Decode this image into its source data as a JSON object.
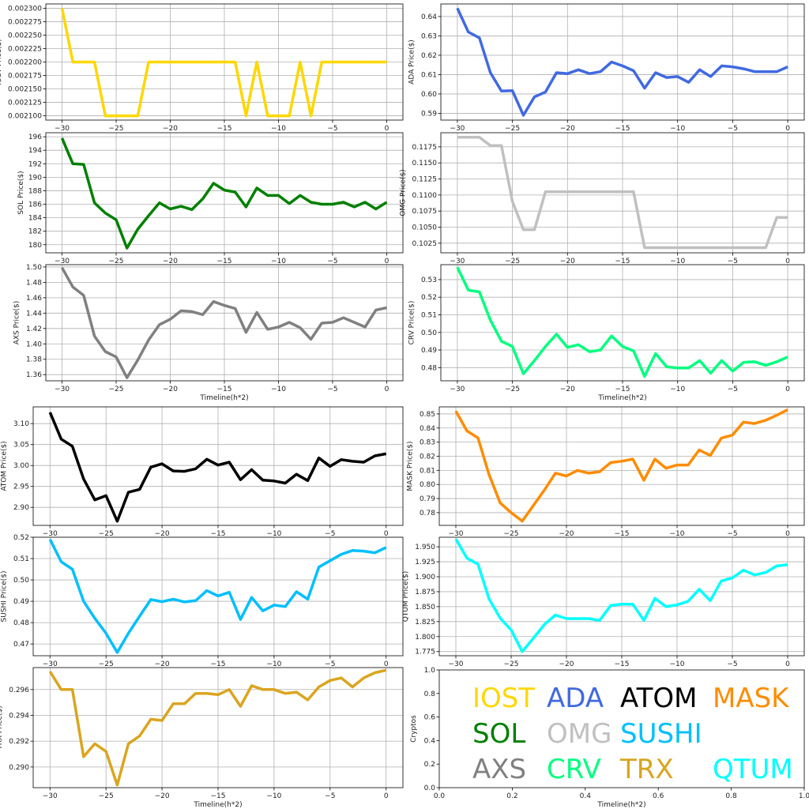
{
  "chart_data": [
    {
      "type": "line",
      "key": "iost",
      "ylabel": "IOST Price($)",
      "xlabel": "",
      "color": "#FFD700",
      "ylim": [
        0.002092,
        0.002308
      ],
      "yticks": [
        0.0021,
        0.002125,
        0.00215,
        0.002175,
        0.0022,
        0.002225,
        0.00225,
        0.002275,
        0.0023
      ],
      "ytick_decimals": 6,
      "x": [
        -30,
        -29,
        -28,
        -27,
        -26,
        -25,
        -24,
        -23,
        -22,
        -21,
        -20,
        -19,
        -18,
        -17,
        -16,
        -15,
        -14,
        -13,
        -12,
        -11,
        -10,
        -9,
        -8,
        -7,
        -6,
        -5,
        -4,
        -3,
        -2,
        -1,
        0
      ],
      "values": [
        0.0023,
        0.0022,
        0.0022,
        0.0022,
        0.0021,
        0.0021,
        0.0021,
        0.0021,
        0.0022,
        0.0022,
        0.0022,
        0.0022,
        0.0022,
        0.0022,
        0.0022,
        0.0022,
        0.0022,
        0.0021,
        0.0022,
        0.0021,
        0.0021,
        0.0021,
        0.0022,
        0.0021,
        0.0022,
        0.0022,
        0.0022,
        0.0022,
        0.0022,
        0.0022,
        0.0022
      ]
    },
    {
      "type": "line",
      "key": "ada",
      "ylabel": "ADA  Price($)",
      "xlabel": "",
      "color": "#4169E1",
      "ylim": [
        0.5865,
        0.6465
      ],
      "yticks": [
        0.59,
        0.6,
        0.61,
        0.62,
        0.63,
        0.64
      ],
      "ytick_decimals": 2,
      "x": [
        -30,
        -29,
        -28,
        -27,
        -26,
        -25,
        -24,
        -23,
        -22,
        -21,
        -20,
        -19,
        -18,
        -17,
        -16,
        -15,
        -14,
        -13,
        -12,
        -11,
        -10,
        -9,
        -8,
        -7,
        -6,
        -5,
        -4,
        -3,
        -2,
        -1,
        0
      ],
      "values": [
        0.6443,
        0.632,
        0.629,
        0.611,
        0.6015,
        0.6017,
        0.589,
        0.5985,
        0.601,
        0.611,
        0.6105,
        0.6125,
        0.6105,
        0.6115,
        0.6165,
        0.6145,
        0.612,
        0.603,
        0.611,
        0.6085,
        0.609,
        0.606,
        0.6125,
        0.609,
        0.6145,
        0.614,
        0.613,
        0.6115,
        0.6115,
        0.6115,
        0.614
      ]
    },
    {
      "type": "line",
      "key": "sol",
      "ylabel": "SOL Price($)",
      "xlabel": "",
      "color": "#008000",
      "ylim": [
        178.8,
        196.6
      ],
      "yticks": [
        180,
        182,
        184,
        186,
        188,
        190,
        192,
        194,
        196
      ],
      "ytick_decimals": 0,
      "x": [
        -30,
        -29,
        -28,
        -27,
        -26,
        -25,
        -24,
        -23,
        -22,
        -21,
        -20,
        -19,
        -18,
        -17,
        -16,
        -15,
        -14,
        -13,
        -12,
        -11,
        -10,
        -9,
        -8,
        -7,
        -6,
        -5,
        -4,
        -3,
        -2,
        -1,
        0
      ],
      "values": [
        195.8,
        192.0,
        191.9,
        186.2,
        184.7,
        183.7,
        179.5,
        182.3,
        184.3,
        186.2,
        185.3,
        185.7,
        185.2,
        186.8,
        189.1,
        188.1,
        187.8,
        185.6,
        188.4,
        187.3,
        187.3,
        186.1,
        187.3,
        186.3,
        186.0,
        186.0,
        186.3,
        185.6,
        186.3,
        185.3,
        186.3
      ]
    },
    {
      "type": "line",
      "key": "omg",
      "ylabel": "OMG  Price($)",
      "xlabel": "",
      "color": "#C0C0C0",
      "ylim": [
        0.101,
        0.1197
      ],
      "yticks": [
        0.1025,
        0.105,
        0.1075,
        0.11,
        0.1125,
        0.115,
        0.1175
      ],
      "ytick_decimals": 4,
      "x": [
        -30,
        -29,
        -28,
        -27,
        -26,
        -25,
        -24,
        -23,
        -22,
        -21,
        -20,
        -19,
        -18,
        -17,
        -16,
        -15,
        -14,
        -13,
        -12,
        -11,
        -10,
        -9,
        -8,
        -7,
        -6,
        -5,
        -4,
        -3,
        -2,
        -1,
        0
      ],
      "values": [
        0.119,
        0.119,
        0.119,
        0.1177,
        0.1177,
        0.109,
        0.1046,
        0.1046,
        0.1105,
        0.1105,
        0.1105,
        0.1105,
        0.1105,
        0.1105,
        0.1105,
        0.1105,
        0.1105,
        0.1018,
        0.1018,
        0.1018,
        0.1018,
        0.1018,
        0.1018,
        0.1018,
        0.1018,
        0.1018,
        0.1018,
        0.1018,
        0.1018,
        0.1065,
        0.1065
      ]
    },
    {
      "type": "line",
      "key": "axs",
      "ylabel": "AXS Price($)",
      "xlabel": "Timeline(h*2)",
      "color": "#808080",
      "ylim": [
        1.352,
        1.503
      ],
      "yticks": [
        1.36,
        1.38,
        1.4,
        1.42,
        1.44,
        1.46,
        1.48,
        1.5
      ],
      "ytick_decimals": 2,
      "x": [
        -30,
        -29,
        -28,
        -27,
        -26,
        -25,
        -24,
        -23,
        -22,
        -21,
        -20,
        -19,
        -18,
        -17,
        -16,
        -15,
        -14,
        -13,
        -12,
        -11,
        -10,
        -9,
        -8,
        -7,
        -6,
        -5,
        -4,
        -3,
        -2,
        -1,
        0
      ],
      "values": [
        1.499,
        1.474,
        1.463,
        1.41,
        1.39,
        1.383,
        1.356,
        1.379,
        1.405,
        1.425,
        1.432,
        1.443,
        1.442,
        1.438,
        1.455,
        1.45,
        1.446,
        1.415,
        1.441,
        1.419,
        1.422,
        1.428,
        1.421,
        1.406,
        1.427,
        1.428,
        1.434,
        1.428,
        1.422,
        1.444,
        1.447
      ]
    },
    {
      "type": "line",
      "key": "crv",
      "ylabel": "CRV  Price($)",
      "xlabel": "Timeline(h*2)",
      "color": "#00FF7F",
      "ylim": [
        0.4725,
        0.5385
      ],
      "yticks": [
        0.48,
        0.49,
        0.5,
        0.51,
        0.52,
        0.53
      ],
      "ytick_decimals": 2,
      "x": [
        -30,
        -29,
        -28,
        -27,
        -26,
        -25,
        -24,
        -23,
        -22,
        -21,
        -20,
        -19,
        -18,
        -17,
        -16,
        -15,
        -14,
        -13,
        -12,
        -11,
        -10,
        -9,
        -8,
        -7,
        -6,
        -5,
        -4,
        -3,
        -2,
        -1,
        0
      ],
      "values": [
        0.537,
        0.524,
        0.523,
        0.507,
        0.495,
        0.492,
        0.4765,
        0.484,
        0.492,
        0.499,
        0.4915,
        0.493,
        0.489,
        0.49,
        0.498,
        0.492,
        0.4895,
        0.475,
        0.488,
        0.4805,
        0.4798,
        0.4798,
        0.484,
        0.4768,
        0.484,
        0.478,
        0.483,
        0.4833,
        0.4813,
        0.4833,
        0.486
      ]
    },
    {
      "type": "line",
      "key": "atom",
      "ylabel": "ATOM  Price($)",
      "xlabel": "",
      "color": "#000000",
      "ylim": [
        2.857,
        3.14
      ],
      "yticks": [
        2.9,
        2.95,
        3.0,
        3.05,
        3.1
      ],
      "ytick_decimals": 2,
      "x": [
        -30,
        -29,
        -28,
        -27,
        -26,
        -25,
        -24,
        -23,
        -22,
        -21,
        -20,
        -19,
        -18,
        -17,
        -16,
        -15,
        -14,
        -13,
        -12,
        -11,
        -10,
        -9,
        -8,
        -7,
        -6,
        -5,
        -4,
        -3,
        -2,
        -1,
        0
      ],
      "values": [
        3.127,
        3.063,
        3.046,
        2.968,
        2.918,
        2.928,
        2.867,
        2.936,
        2.943,
        2.996,
        3.004,
        2.987,
        2.986,
        2.992,
        3.015,
        3.001,
        3.008,
        2.966,
        2.99,
        2.965,
        2.963,
        2.958,
        2.979,
        2.964,
        3.018,
        2.998,
        3.014,
        3.01,
        3.008,
        3.023,
        3.028
      ]
    },
    {
      "type": "line",
      "key": "mask",
      "ylabel": "MASK  Price($)",
      "xlabel": "",
      "color": "#FF8C00",
      "ylim": [
        0.771,
        0.855
      ],
      "yticks": [
        0.78,
        0.79,
        0.8,
        0.81,
        0.82,
        0.83,
        0.84,
        0.85
      ],
      "ytick_decimals": 2,
      "x": [
        -30,
        -29,
        -28,
        -27,
        -26,
        -25,
        -24,
        -23,
        -22,
        -21,
        -20,
        -19,
        -18,
        -17,
        -16,
        -15,
        -14,
        -13,
        -12,
        -11,
        -10,
        -9,
        -8,
        -7,
        -6,
        -5,
        -4,
        -3,
        -2,
        -1,
        0
      ],
      "values": [
        0.852,
        0.838,
        0.833,
        0.807,
        0.787,
        0.78,
        0.774,
        0.785,
        0.796,
        0.808,
        0.806,
        0.81,
        0.808,
        0.809,
        0.8155,
        0.8165,
        0.818,
        0.803,
        0.818,
        0.8115,
        0.8138,
        0.8138,
        0.8245,
        0.8205,
        0.8328,
        0.835,
        0.8442,
        0.8432,
        0.8455,
        0.849,
        0.853
      ]
    },
    {
      "type": "line",
      "key": "sushi",
      "ylabel": "SUSHI  Price($)",
      "xlabel": "",
      "color": "#00BFFF",
      "ylim": [
        0.4645,
        0.52
      ],
      "yticks": [
        0.47,
        0.48,
        0.49,
        0.5,
        0.51,
        0.52
      ],
      "ytick_decimals": 2,
      "x": [
        -30,
        -29,
        -28,
        -27,
        -26,
        -25,
        -24,
        -23,
        -22,
        -21,
        -20,
        -19,
        -18,
        -17,
        -16,
        -15,
        -14,
        -13,
        -12,
        -11,
        -10,
        -9,
        -8,
        -7,
        -6,
        -5,
        -4,
        -3,
        -2,
        -1,
        0
      ],
      "values": [
        0.519,
        0.5085,
        0.505,
        0.49,
        0.482,
        0.475,
        0.466,
        0.475,
        0.483,
        0.4908,
        0.4898,
        0.491,
        0.4897,
        0.4903,
        0.495,
        0.4925,
        0.4942,
        0.4815,
        0.4918,
        0.4855,
        0.4882,
        0.4875,
        0.4945,
        0.491,
        0.506,
        0.509,
        0.512,
        0.5138,
        0.5135,
        0.5127,
        0.5152
      ]
    },
    {
      "type": "line",
      "key": "qtum",
      "ylabel": "QTUM Price($)",
      "xlabel": "",
      "color": "#00FFFF",
      "ylim": [
        1.768,
        1.966
      ],
      "yticks": [
        1.775,
        1.8,
        1.825,
        1.85,
        1.875,
        1.9,
        1.925,
        1.95
      ],
      "ytick_decimals": 3,
      "x": [
        -30,
        -29,
        -28,
        -27,
        -26,
        -25,
        -24,
        -23,
        -22,
        -21,
        -20,
        -19,
        -18,
        -17,
        -16,
        -15,
        -14,
        -13,
        -12,
        -11,
        -10,
        -9,
        -8,
        -7,
        -6,
        -5,
        -4,
        -3,
        -2,
        -1,
        0
      ],
      "values": [
        1.963,
        1.931,
        1.921,
        1.863,
        1.831,
        1.811,
        1.775,
        1.797,
        1.82,
        1.836,
        1.83,
        1.83,
        1.83,
        1.827,
        1.852,
        1.854,
        1.854,
        1.827,
        1.864,
        1.85,
        1.853,
        1.859,
        1.879,
        1.86,
        1.893,
        1.898,
        1.911,
        1.903,
        1.907,
        1.918,
        1.92
      ]
    },
    {
      "type": "line",
      "key": "trx",
      "ylabel": "TRX Price($)",
      "xlabel": "Timeline(h*2)",
      "color": "#DAA520",
      "ylim": [
        0.2884,
        0.2977
      ],
      "yticks": [
        0.29,
        0.292,
        0.294,
        0.296
      ],
      "ytick_decimals": 3,
      "x": [
        -30,
        -29,
        -28,
        -27,
        -26,
        -25,
        -24,
        -23,
        -22,
        -21,
        -20,
        -19,
        -18,
        -17,
        -16,
        -15,
        -14,
        -13,
        -12,
        -11,
        -10,
        -9,
        -8,
        -7,
        -6,
        -5,
        -4,
        -3,
        -2,
        -1,
        0
      ],
      "values": [
        0.2974,
        0.296,
        0.296,
        0.2908,
        0.2918,
        0.2912,
        0.2886,
        0.2918,
        0.2924,
        0.2937,
        0.2936,
        0.2949,
        0.2949,
        0.2957,
        0.2957,
        0.2956,
        0.296,
        0.2947,
        0.2963,
        0.296,
        0.296,
        0.2957,
        0.2958,
        0.2952,
        0.2962,
        0.2967,
        0.2969,
        0.2962,
        0.2969,
        0.2973,
        0.2975
      ]
    }
  ],
  "shared": {
    "xlim": [
      -31.5,
      1.5
    ],
    "xticks": [
      -30,
      -25,
      -20,
      -15,
      -10,
      -5,
      0
    ]
  },
  "legend_panel": {
    "ylabel": "Cryptos",
    "xlabel": "Timeline(h*2)",
    "xticks": [
      "0.0",
      "0.2",
      "0.4",
      "0.6",
      "0.8",
      "1.0"
    ],
    "yticks": [
      "0.0",
      "0.2",
      "0.4",
      "0.6",
      "0.8",
      "1.0"
    ],
    "entries": [
      {
        "label": "IOST",
        "color": "#FFD700"
      },
      {
        "label": "ADA",
        "color": "#4169E1"
      },
      {
        "label": "ATOM",
        "color": "#000000"
      },
      {
        "label": "MASK",
        "color": "#FF8C00"
      },
      {
        "label": "SOL",
        "color": "#008000"
      },
      {
        "label": "OMG",
        "color": "#C0C0C0"
      },
      {
        "label": "SUSHI",
        "color": "#00BFFF"
      },
      {
        "label": "AXS",
        "color": "#808080"
      },
      {
        "label": "CRV",
        "color": "#00FF7F"
      },
      {
        "label": "TRX",
        "color": "#DAA520"
      },
      {
        "label": "QTUM",
        "color": "#00FFFF"
      }
    ]
  }
}
